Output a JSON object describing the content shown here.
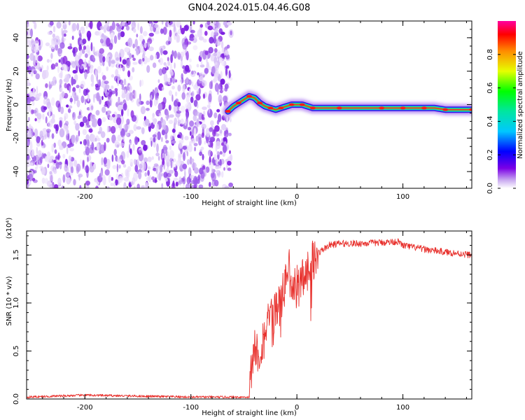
{
  "title": "GN04.2024.015.04.46.G08",
  "colors": {
    "snr_line": "#e8322e",
    "axis": "#000000",
    "background": "#ffffff",
    "noise": "#8a2be2"
  },
  "chart_data": [
    {
      "id": "spectrogram",
      "type": "heatmap",
      "xlabel": "Height of straight line (km)",
      "ylabel": "Frequency (Hz)",
      "xlim": [
        -255,
        165
      ],
      "ylim": [
        -50,
        50
      ],
      "xticks": [
        -200,
        -100,
        0,
        100
      ],
      "xtick_labels": [
        "-200",
        "-100",
        "0",
        "100"
      ],
      "yticks": [
        -40,
        -20,
        0,
        20,
        40
      ],
      "ytick_labels": [
        "-40",
        "-20",
        "0",
        "20",
        "40"
      ],
      "noise_region_x": [
        -255,
        -62
      ],
      "signal_track": {
        "x": [
          -65,
          -60,
          -55,
          -50,
          -45,
          -40,
          -35,
          -30,
          -25,
          -20,
          -15,
          -10,
          -5,
          0,
          5,
          10,
          15,
          20,
          40,
          60,
          80,
          95,
          100,
          110,
          120,
          130,
          140,
          150,
          165
        ],
        "y": [
          -4,
          -1,
          1,
          3,
          5,
          4,
          1,
          -1,
          -2,
          -3,
          -2,
          -1,
          0,
          0,
          0,
          -1,
          -2,
          -2,
          -2,
          -2,
          -2,
          -2,
          -2,
          -2,
          -2,
          -2,
          -3,
          -3,
          -3
        ]
      },
      "colorbar": {
        "label": "Normalized spectral amplitude",
        "range": [
          0,
          1
        ],
        "ticks": [
          0.0,
          0.2,
          0.4,
          0.6,
          0.8
        ],
        "tick_labels": [
          "0.0",
          "0.2",
          "0.4",
          "0.6",
          "0.8"
        ]
      }
    },
    {
      "id": "snr",
      "type": "line",
      "xlabel": "Height of straight line (km)",
      "ylabel": "SNR (10 * v/v)",
      "scale_label": "(x10⁴)",
      "xlim": [
        -255,
        165
      ],
      "ylim": [
        0,
        1.75
      ],
      "xticks": [
        -200,
        -100,
        0,
        100
      ],
      "xtick_labels": [
        "-200",
        "-100",
        "0",
        "100"
      ],
      "yticks": [
        0.0,
        0.5,
        1.0,
        1.5
      ],
      "ytick_labels": [
        "0.0",
        "0.5",
        "1.0",
        "1.5"
      ],
      "series": [
        {
          "x": [
            -255,
            -200,
            -150,
            -100,
            -60,
            -45,
            -42,
            -40,
            -35,
            -30,
            -25,
            -20,
            -15,
            -10,
            -8,
            -5,
            0,
            5,
            10,
            15,
            20,
            30,
            40,
            60,
            80,
            95,
            100,
            120,
            140,
            165
          ],
          "y": [
            0.02,
            0.04,
            0.03,
            0.02,
            0.02,
            0.02,
            0.45,
            0.55,
            0.45,
            0.75,
            0.8,
            0.95,
            1.0,
            1.25,
            1.45,
            1.1,
            1.2,
            1.25,
            1.35,
            1.45,
            1.52,
            1.6,
            1.62,
            1.62,
            1.63,
            1.64,
            1.6,
            1.56,
            1.53,
            1.5
          ]
        }
      ]
    }
  ]
}
